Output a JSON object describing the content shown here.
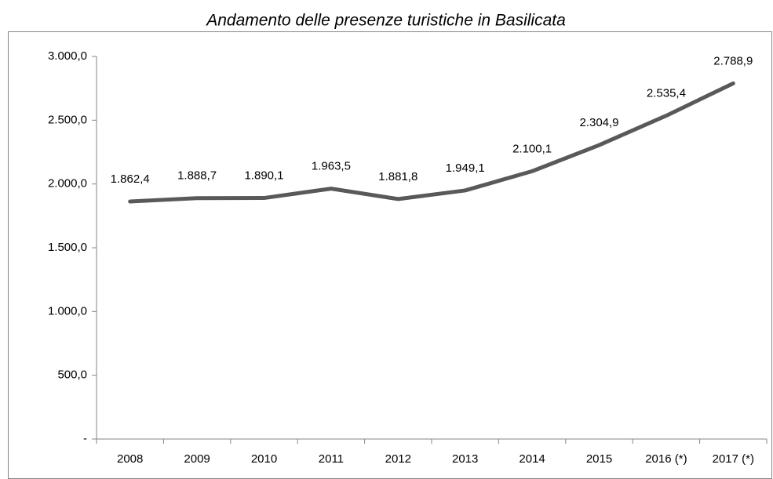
{
  "chart_data": {
    "type": "line",
    "title": "Andamento delle presenze turistiche in Basilicata",
    "categories": [
      "2008",
      "2009",
      "2010",
      "2011",
      "2012",
      "2013",
      "2014",
      "2015",
      "2016 (*)",
      "2017 (*)"
    ],
    "series": [
      {
        "color": "#595959",
        "values": [
          1862.4,
          1888.7,
          1890.1,
          1963.5,
          1881.8,
          1949.1,
          2100.1,
          2304.9,
          2535.4,
          2788.9
        ],
        "value_labels": [
          "1.862,4",
          "1.888,7",
          "1.890,1",
          "1.963,5",
          "1.881,8",
          "1.949,1",
          "2.100,1",
          "2.304,9",
          "2.535,4",
          "2.788,9"
        ]
      }
    ],
    "ylim": [
      0,
      3000
    ],
    "yticks": [
      {
        "value": 0,
        "label": "-"
      },
      {
        "value": 500,
        "label": "500,0"
      },
      {
        "value": 1000,
        "label": "1.000,0"
      },
      {
        "value": 1500,
        "label": "1.500,0"
      },
      {
        "value": 2000,
        "label": "2.000,0"
      },
      {
        "value": 2500,
        "label": "2.500,0"
      },
      {
        "value": 3000,
        "label": "3.000,0"
      }
    ],
    "grid": false
  }
}
